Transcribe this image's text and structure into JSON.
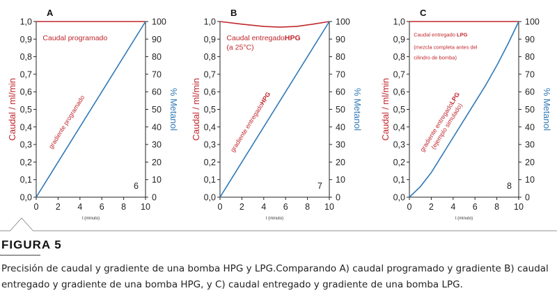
{
  "figure": {
    "title": "FIGURA 5",
    "caption": "Precisión de caudal y gradiente de una bomba HPG y LPG.Comparando A) caudal programado y gradiente B) caudal entregado y gradiente de una bomba HPG, y C) caudal entregado y gradiente de una bomba LPG."
  },
  "colors": {
    "flow": "#c0272d",
    "gradient": "#2e78b7",
    "axis": "#222222"
  },
  "chart_data": [
    {
      "type": "line",
      "panel_label": "A",
      "xlabel": "t (minuto)",
      "ylabel": "Caudal / ml/min",
      "ylabel_right": "% Metanol",
      "xlim": [
        0,
        10
      ],
      "ylim": [
        0,
        1.0
      ],
      "ylim_right": [
        0,
        100
      ],
      "xticks": [
        0,
        2,
        4,
        6,
        8,
        10
      ],
      "yticks": [
        0.0,
        0.1,
        0.2,
        0.3,
        0.4,
        0.5,
        0.6,
        0.7,
        0.8,
        0.9,
        1.0
      ],
      "yticks_right": [
        0,
        10,
        20,
        30,
        40,
        50,
        60,
        70,
        80,
        90,
        100
      ],
      "number_label": "6",
      "annotations": [
        {
          "text": "Caudal programado",
          "x": 0.6,
          "y": 0.91
        }
      ],
      "series": [
        {
          "axis": "left",
          "x": [
            0,
            10
          ],
          "values": [
            1.0,
            1.0
          ]
        },
        {
          "axis": "right",
          "x": [
            0,
            10
          ],
          "values": [
            0,
            100
          ],
          "label": "gradiente programado"
        }
      ]
    },
    {
      "type": "line",
      "panel_label": "B",
      "xlabel": "t (minuto)",
      "ylabel": "Caudal / ml/min",
      "ylabel_right": "% Metanol",
      "xlim": [
        0,
        10
      ],
      "ylim": [
        0,
        1.0
      ],
      "ylim_right": [
        0,
        100
      ],
      "xticks": [
        0,
        2,
        4,
        6,
        8,
        10
      ],
      "yticks": [
        0.0,
        0.1,
        0.2,
        0.3,
        0.4,
        0.5,
        0.6,
        0.7,
        0.8,
        0.9,
        1.0
      ],
      "yticks_right": [
        0,
        10,
        20,
        30,
        40,
        50,
        60,
        70,
        80,
        90,
        100
      ],
      "number_label": "7",
      "annotations": [
        {
          "text": "Caudal entregado",
          "bold": "HPG",
          "x": 0.6,
          "y": 0.91
        },
        {
          "text": "(a 25°C)",
          "x": 0.6,
          "y": 0.855
        }
      ],
      "series": [
        {
          "axis": "left",
          "x": [
            0,
            2,
            4,
            5.5,
            7,
            8.5,
            10
          ],
          "values": [
            1.0,
            0.985,
            0.972,
            0.968,
            0.972,
            0.985,
            1.0
          ]
        },
        {
          "axis": "right",
          "x": [
            0,
            10
          ],
          "values": [
            0,
            100
          ],
          "label": "gradiente entregado",
          "label_bold": "HPG"
        }
      ]
    },
    {
      "type": "line",
      "panel_label": "C",
      "xlabel": "t (minuto)",
      "ylabel": "Caudal / ml/min",
      "ylabel_right": "% Metanol",
      "xlim": [
        0,
        10
      ],
      "ylim": [
        0,
        1.0
      ],
      "ylim_right": [
        0,
        100
      ],
      "xticks": [
        0,
        2,
        4,
        6,
        8,
        10
      ],
      "yticks": [
        0.0,
        0.1,
        0.2,
        0.3,
        0.4,
        0.5,
        0.6,
        0.7,
        0.8,
        0.9,
        1.0
      ],
      "yticks_right": [
        0,
        10,
        20,
        30,
        40,
        50,
        60,
        70,
        80,
        90,
        100
      ],
      "number_label": "8",
      "annotations": [
        {
          "text": "Caudal entregado",
          "bold": "LPG",
          "x": 0.4,
          "y": 0.93,
          "size": "small"
        },
        {
          "text": "(mezcla completa antes del",
          "x": 0.4,
          "y": 0.86,
          "size": "small"
        },
        {
          "text": "cilindro de bomba)",
          "x": 0.4,
          "y": 0.8,
          "size": "small"
        }
      ],
      "series": [
        {
          "axis": "left",
          "x": [
            0,
            10
          ],
          "values": [
            1.0,
            1.0
          ]
        },
        {
          "axis": "right",
          "x": [
            0,
            1,
            2,
            3,
            4,
            5,
            6,
            7,
            8,
            9,
            10
          ],
          "values": [
            0,
            6,
            14,
            24,
            34,
            44,
            54,
            64,
            75,
            87,
            100
          ],
          "label": "gradiente entregado",
          "label_bold": "LPG",
          "label2": "(ejemplo simulado)"
        }
      ]
    }
  ]
}
